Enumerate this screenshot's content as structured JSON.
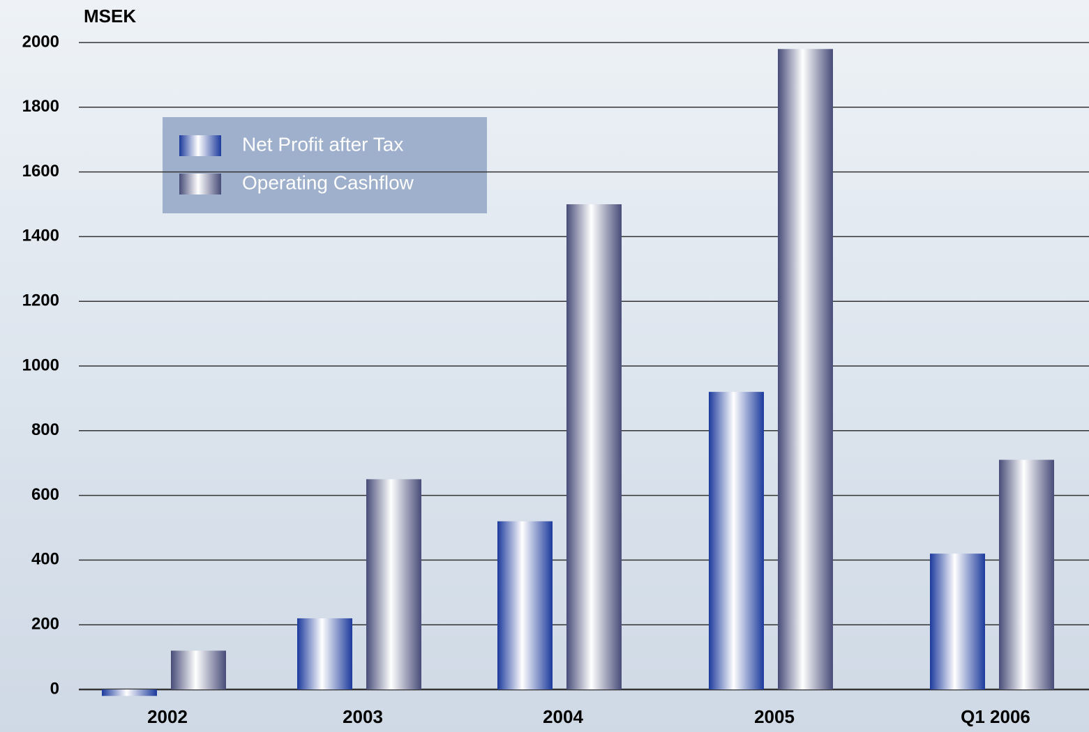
{
  "chart_data": {
    "type": "bar",
    "y_label": "MSEK",
    "categories": [
      "2002",
      "2003",
      "2004",
      "2005",
      "Q1 2006"
    ],
    "series": [
      {
        "name": "Net Profit after Tax",
        "color": "#1c3a9c",
        "values": [
          -20,
          220,
          520,
          920,
          420
        ]
      },
      {
        "name": "Operating Cashflow",
        "color": "#474c78",
        "values": [
          120,
          650,
          1500,
          1980,
          710
        ]
      }
    ],
    "ylim": [
      0,
      2000
    ],
    "yticks": [
      0,
      200,
      400,
      600,
      800,
      1000,
      1200,
      1400,
      1600,
      1800,
      2000
    ],
    "grid": true
  }
}
